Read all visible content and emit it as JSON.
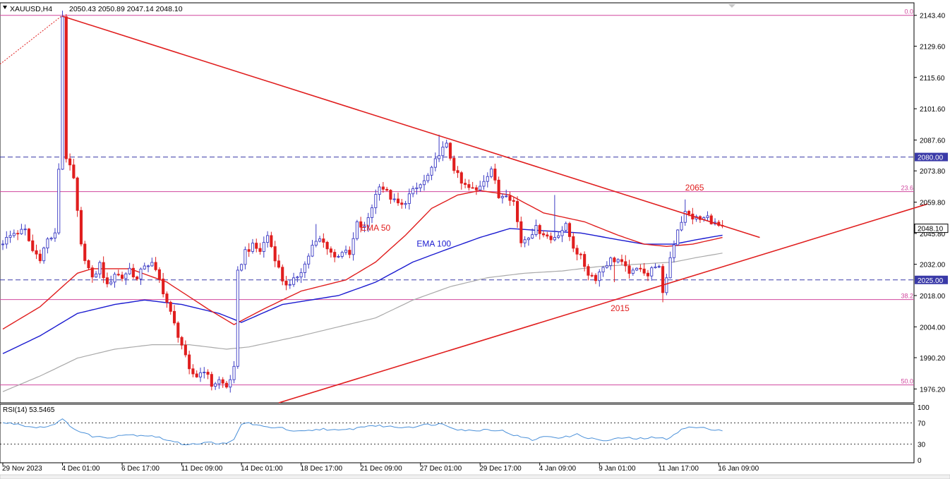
{
  "header": {
    "symbol": "XAUUSD,H4",
    "ohlc": "2050.43 2050.89 2047.14 2048.10",
    "rsi_label": "RSI(14) 53.5465"
  },
  "colors": {
    "bull": "#3b3bc4",
    "bear": "#e01e1e",
    "ema50": "#e01e1e",
    "ema100": "#1a1ad0",
    "ema200": "#a9a9a9",
    "fib": "#d0479e",
    "hline": "#3a3aa8",
    "trend": "#e01e1e",
    "rsi": "#4a90d9",
    "grid": "#000000"
  },
  "chart_data": {
    "type": "candlestick",
    "price_axis": {
      "min": 1970,
      "max": 2149,
      "ticks": [
        "2143.40",
        "2129.60",
        "2115.60",
        "2101.60",
        "2087.60",
        "2073.80",
        "2059.80",
        "2045.80",
        "2032.00",
        "2018.00",
        "2004.00",
        "1990.20",
        "1976.20"
      ]
    },
    "current_price": {
      "value": 2048.1,
      "label": "2048.10"
    },
    "time_axis": {
      "labels": [
        "29 Nov 2023",
        "4 Dec 01:00",
        "6 Dec 17:00",
        "11 Dec 09:00",
        "14 Dec 01:00",
        "18 Dec 17:00",
        "21 Dec 09:00",
        "27 Dec 01:00",
        "29 Dec 17:00",
        "4 Jan 09:00",
        "9 Jan 01:00",
        "11 Jan 17:00",
        "16 Jan 09:00"
      ],
      "label_bars": [
        0,
        16,
        32,
        48,
        64,
        80,
        96,
        112,
        128,
        144,
        160,
        176,
        192
      ]
    },
    "bar_count": 194,
    "anchors": [
      [
        0,
        2042
      ],
      [
        3,
        2046
      ],
      [
        6,
        2047
      ],
      [
        8,
        2038
      ],
      [
        10,
        2035
      ],
      [
        12,
        2043
      ],
      [
        14,
        2045
      ],
      [
        15,
        2075
      ],
      [
        16,
        2143
      ],
      [
        17,
        2080
      ],
      [
        19,
        2070
      ],
      [
        21,
        2040
      ],
      [
        24,
        2025
      ],
      [
        26,
        2032
      ],
      [
        28,
        2022
      ],
      [
        30,
        2028
      ],
      [
        32,
        2026
      ],
      [
        34,
        2030
      ],
      [
        36,
        2025
      ],
      [
        38,
        2032
      ],
      [
        40,
        2032
      ],
      [
        42,
        2025
      ],
      [
        44,
        2015
      ],
      [
        46,
        2005
      ],
      [
        48,
        1996
      ],
      [
        50,
        1984
      ],
      [
        52,
        1982
      ],
      [
        54,
        1985
      ],
      [
        56,
        1978
      ],
      [
        58,
        1980
      ],
      [
        60,
        1977
      ],
      [
        62,
        1985
      ],
      [
        63,
        2028
      ],
      [
        65,
        2038
      ],
      [
        67,
        2040
      ],
      [
        69,
        2038
      ],
      [
        71,
        2045
      ],
      [
        73,
        2035
      ],
      [
        75,
        2025
      ],
      [
        77,
        2022
      ],
      [
        79,
        2027
      ],
      [
        81,
        2032
      ],
      [
        83,
        2040
      ],
      [
        85,
        2043
      ],
      [
        87,
        2040
      ],
      [
        89,
        2035
      ],
      [
        91,
        2038
      ],
      [
        93,
        2036
      ],
      [
        95,
        2050
      ],
      [
        97,
        2048
      ],
      [
        99,
        2058
      ],
      [
        101,
        2068
      ],
      [
        103,
        2064
      ],
      [
        105,
        2060
      ],
      [
        107,
        2058
      ],
      [
        109,
        2063
      ],
      [
        111,
        2066
      ],
      [
        113,
        2069
      ],
      [
        115,
        2074
      ],
      [
        117,
        2082
      ],
      [
        119,
        2085
      ],
      [
        121,
        2075
      ],
      [
        123,
        2068
      ],
      [
        125,
        2066
      ],
      [
        127,
        2065
      ],
      [
        129,
        2070
      ],
      [
        131,
        2075
      ],
      [
        133,
        2062
      ],
      [
        135,
        2064
      ],
      [
        137,
        2060
      ],
      [
        139,
        2042
      ],
      [
        141,
        2045
      ],
      [
        143,
        2048
      ],
      [
        145,
        2046
      ],
      [
        147,
        2043
      ],
      [
        149,
        2046
      ],
      [
        151,
        2049
      ],
      [
        153,
        2040
      ],
      [
        155,
        2035
      ],
      [
        157,
        2028
      ],
      [
        159,
        2026
      ],
      [
        161,
        2031
      ],
      [
        163,
        2034
      ],
      [
        165,
        2034
      ],
      [
        167,
        2030
      ],
      [
        169,
        2028
      ],
      [
        171,
        2031
      ],
      [
        173,
        2027
      ],
      [
        175,
        2032
      ],
      [
        176,
        2030
      ],
      [
        177,
        2018
      ],
      [
        179,
        2035
      ],
      [
        181,
        2048
      ],
      [
        183,
        2055
      ],
      [
        185,
        2053
      ],
      [
        187,
        2052
      ],
      [
        189,
        2053
      ],
      [
        191,
        2050
      ],
      [
        193,
        2048
      ]
    ],
    "wicks": [
      [
        16,
        2143
      ],
      [
        17,
        2094
      ],
      [
        84,
        2050
      ],
      [
        117,
        2090
      ],
      [
        148,
        2063
      ],
      [
        157,
        2030
      ],
      [
        164,
        2024
      ],
      [
        177,
        2015
      ],
      [
        183,
        2061
      ]
    ],
    "ema_anchors": {
      "ema50": [
        [
          0,
          2003
        ],
        [
          10,
          2013
        ],
        [
          20,
          2028
        ],
        [
          24,
          2030
        ],
        [
          34,
          2030
        ],
        [
          44,
          2024
        ],
        [
          55,
          2012
        ],
        [
          62,
          2005
        ],
        [
          70,
          2012
        ],
        [
          80,
          2020
        ],
        [
          92,
          2025
        ],
        [
          100,
          2033
        ],
        [
          108,
          2045
        ],
        [
          115,
          2057
        ],
        [
          122,
          2063
        ],
        [
          128,
          2065
        ],
        [
          136,
          2063
        ],
        [
          145,
          2055
        ],
        [
          156,
          2051
        ],
        [
          165,
          2045
        ],
        [
          172,
          2041
        ],
        [
          178,
          2040
        ],
        [
          185,
          2041
        ],
        [
          193,
          2044
        ]
      ],
      "ema100": [
        [
          0,
          1992
        ],
        [
          10,
          2000
        ],
        [
          20,
          2010
        ],
        [
          30,
          2014
        ],
        [
          38,
          2016
        ],
        [
          48,
          2014
        ],
        [
          58,
          2010
        ],
        [
          64,
          2006
        ],
        [
          75,
          2014
        ],
        [
          90,
          2018
        ],
        [
          100,
          2024
        ],
        [
          110,
          2033
        ],
        [
          118,
          2038
        ],
        [
          128,
          2044
        ],
        [
          136,
          2048
        ],
        [
          145,
          2047
        ],
        [
          155,
          2046
        ],
        [
          165,
          2043
        ],
        [
          172,
          2041
        ],
        [
          180,
          2041
        ],
        [
          186,
          2043
        ],
        [
          193,
          2045
        ]
      ],
      "ema200": [
        [
          0,
          1975
        ],
        [
          10,
          1982
        ],
        [
          20,
          1990
        ],
        [
          30,
          1994
        ],
        [
          40,
          1996
        ],
        [
          50,
          1996
        ],
        [
          60,
          1994
        ],
        [
          66,
          1995
        ],
        [
          80,
          2000
        ],
        [
          90,
          2004
        ],
        [
          100,
          2008
        ],
        [
          110,
          2016
        ],
        [
          120,
          2022
        ],
        [
          130,
          2026
        ],
        [
          140,
          2028
        ],
        [
          150,
          2029
        ],
        [
          160,
          2031
        ],
        [
          170,
          2032
        ],
        [
          180,
          2033
        ],
        [
          186,
          2035
        ],
        [
          193,
          2037
        ]
      ]
    },
    "horizontal_lines": [
      {
        "price": 2080.0,
        "label": "2080.00"
      },
      {
        "price": 2025.0,
        "label": "2025.00"
      }
    ],
    "fib_levels": [
      {
        "price": 2143.4,
        "label": "0.0"
      },
      {
        "price": 2064.5,
        "label": "23.6"
      },
      {
        "price": 2016.2,
        "label": "38.2"
      },
      {
        "price": 1978.0,
        "label": "50.0"
      }
    ],
    "trendlines": [
      {
        "from": [
          16,
          2143
        ],
        "to": [
          203,
          2044
        ]
      },
      {
        "from": [
          74,
          1970
        ],
        "to": [
          248,
          2059
        ]
      }
    ],
    "annotations": [
      {
        "text": "EMA 50",
        "bar": 96,
        "price": 2047
      },
      {
        "text": "EMA 100",
        "bar": 111,
        "price": 2040
      },
      {
        "text": "2065",
        "bar": 183,
        "price": 2065
      },
      {
        "text": "2015",
        "bar": 163,
        "price": 2011
      }
    ],
    "rsi": {
      "label": "RSI(14) 53.5465",
      "ticks": [
        "100",
        "70",
        "30",
        "0"
      ],
      "levels": [
        70,
        30
      ],
      "anchors": [
        [
          0,
          70
        ],
        [
          4,
          68
        ],
        [
          8,
          62
        ],
        [
          12,
          63
        ],
        [
          16,
          76
        ],
        [
          20,
          55
        ],
        [
          24,
          45
        ],
        [
          28,
          42
        ],
        [
          32,
          48
        ],
        [
          36,
          47
        ],
        [
          40,
          46
        ],
        [
          44,
          38
        ],
        [
          48,
          30
        ],
        [
          52,
          31
        ],
        [
          56,
          33
        ],
        [
          60,
          30
        ],
        [
          62,
          38
        ],
        [
          64,
          68
        ],
        [
          66,
          70
        ],
        [
          70,
          62
        ],
        [
          74,
          62
        ],
        [
          78,
          53
        ],
        [
          82,
          55
        ],
        [
          86,
          59
        ],
        [
          90,
          55
        ],
        [
          94,
          59
        ],
        [
          98,
          65
        ],
        [
          102,
          64
        ],
        [
          106,
          62
        ],
        [
          110,
          63
        ],
        [
          114,
          67
        ],
        [
          118,
          68
        ],
        [
          122,
          58
        ],
        [
          126,
          55
        ],
        [
          130,
          58
        ],
        [
          134,
          55
        ],
        [
          138,
          45
        ],
        [
          142,
          38
        ],
        [
          146,
          45
        ],
        [
          150,
          42
        ],
        [
          154,
          48
        ],
        [
          158,
          40
        ],
        [
          162,
          36
        ],
        [
          166,
          42
        ],
        [
          170,
          40
        ],
        [
          174,
          42
        ],
        [
          178,
          40
        ],
        [
          182,
          57
        ],
        [
          184,
          62
        ],
        [
          188,
          60
        ],
        [
          192,
          57
        ],
        [
          193,
          55
        ]
      ]
    }
  }
}
